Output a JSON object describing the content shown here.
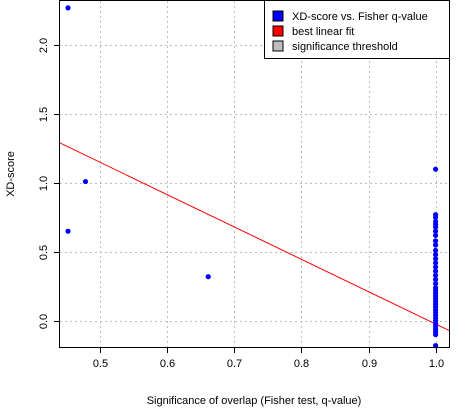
{
  "chart_data": {
    "type": "scatter",
    "title": "",
    "xlabel": "Significance of overlap (Fisher test, q-value)",
    "ylabel": "XD-score",
    "xlim": [
      0.44,
      1.02
    ],
    "ylim": [
      -0.19,
      2.32
    ],
    "x_ticks": [
      0.5,
      0.6,
      0.7,
      0.8,
      0.9,
      1.0
    ],
    "x_tick_labels": [
      "0.5",
      "0.6",
      "0.7",
      "0.8",
      "0.9",
      "1.0"
    ],
    "y_ticks": [
      0.0,
      0.5,
      1.0,
      1.5,
      2.0
    ],
    "y_tick_labels": [
      "0.0",
      "0.5",
      "1.0",
      "1.5",
      "2.0"
    ],
    "grid": true,
    "legend_position": "top-right",
    "legend": [
      {
        "label": "XD-score vs. Fisher q-value",
        "color": "#0000ff"
      },
      {
        "label": "best linear fit",
        "color": "#ff0000"
      },
      {
        "label": "significance threshold",
        "color": "#bebebe"
      }
    ],
    "series": [
      {
        "name": "XD-score vs. Fisher q-value",
        "color": "#0000ff",
        "points": [
          {
            "x": 0.452,
            "y": 2.27
          },
          {
            "x": 0.452,
            "y": 0.65
          },
          {
            "x": 0.478,
            "y": 1.01
          },
          {
            "x": 0.661,
            "y": 0.32
          },
          {
            "x": 1.0,
            "y": 1.1
          },
          {
            "x": 1.0,
            "y": 0.77
          },
          {
            "x": 1.0,
            "y": 0.75
          },
          {
            "x": 1.0,
            "y": 0.72
          },
          {
            "x": 1.0,
            "y": 0.7
          },
          {
            "x": 1.0,
            "y": 0.68
          },
          {
            "x": 1.0,
            "y": 0.65
          },
          {
            "x": 1.0,
            "y": 0.62
          },
          {
            "x": 1.0,
            "y": 0.58
          },
          {
            "x": 1.0,
            "y": 0.55
          },
          {
            "x": 1.0,
            "y": 0.51
          },
          {
            "x": 1.0,
            "y": 0.48
          },
          {
            "x": 1.0,
            "y": 0.45
          },
          {
            "x": 1.0,
            "y": 0.42
          },
          {
            "x": 1.0,
            "y": 0.39
          },
          {
            "x": 1.0,
            "y": 0.36
          },
          {
            "x": 1.0,
            "y": 0.33
          },
          {
            "x": 1.0,
            "y": 0.3
          },
          {
            "x": 1.0,
            "y": 0.27
          },
          {
            "x": 1.0,
            "y": 0.24
          },
          {
            "x": 1.0,
            "y": 0.22
          },
          {
            "x": 1.0,
            "y": 0.2
          },
          {
            "x": 1.0,
            "y": 0.18
          },
          {
            "x": 1.0,
            "y": 0.16
          },
          {
            "x": 1.0,
            "y": 0.14
          },
          {
            "x": 1.0,
            "y": 0.12
          },
          {
            "x": 1.0,
            "y": 0.1
          },
          {
            "x": 1.0,
            "y": 0.08
          },
          {
            "x": 1.0,
            "y": 0.06
          },
          {
            "x": 1.0,
            "y": 0.04
          },
          {
            "x": 1.0,
            "y": 0.02
          },
          {
            "x": 1.0,
            "y": 0.0
          },
          {
            "x": 1.0,
            "y": -0.02
          },
          {
            "x": 1.0,
            "y": -0.04
          },
          {
            "x": 1.0,
            "y": -0.06
          },
          {
            "x": 1.0,
            "y": -0.08
          },
          {
            "x": 1.0,
            "y": -0.1
          },
          {
            "x": 1.0,
            "y": -0.18
          }
        ]
      },
      {
        "name": "best linear fit",
        "color": "#ff0000",
        "line": {
          "x": [
            0.44,
            1.02
          ],
          "y": [
            1.29,
            -0.07
          ]
        }
      }
    ]
  }
}
